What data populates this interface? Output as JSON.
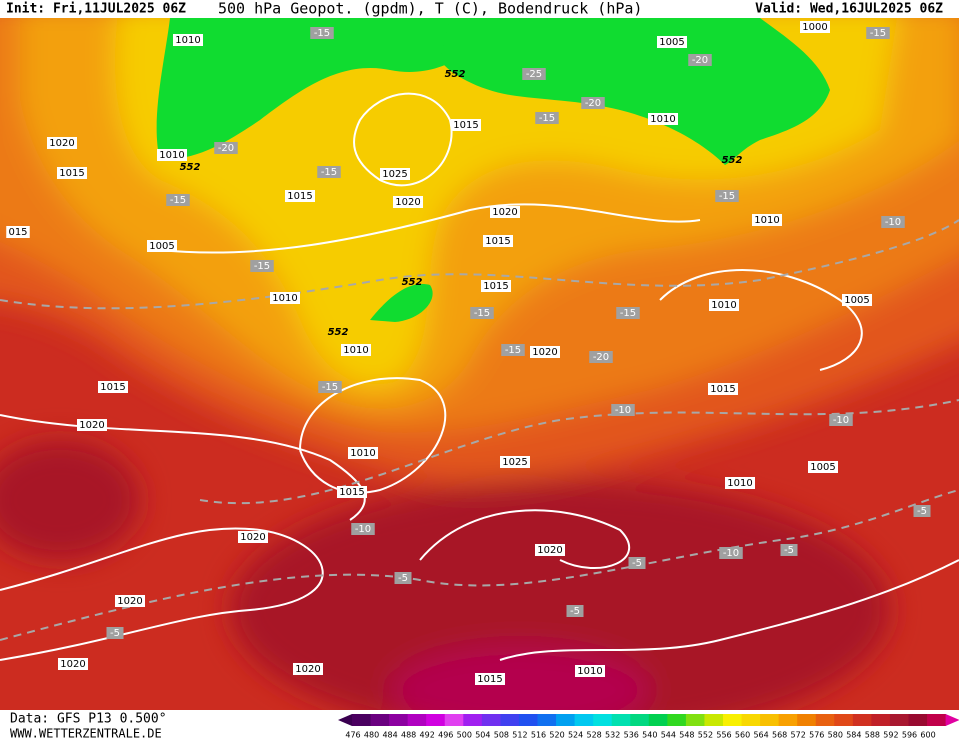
{
  "header": {
    "init": "Init: Fri,11JUL2025 06Z",
    "title": "500 hPa Geopot. (gpdm), T (C), Bodendruck (hPa)",
    "valid": "Valid: Wed,16JUL2025 06Z"
  },
  "footer": {
    "data": "Data: GFS P13 0.500°",
    "site": "WWW.WETTERZENTRALE.DE"
  },
  "colorbar": {
    "labels": [
      "476",
      "480",
      "484",
      "488",
      "492",
      "496",
      "500",
      "504",
      "508",
      "512",
      "516",
      "520",
      "524",
      "528",
      "532",
      "536",
      "540",
      "544",
      "548",
      "552",
      "556",
      "560",
      "564",
      "568",
      "572",
      "576",
      "580",
      "584",
      "588",
      "592",
      "596",
      "600"
    ]
  },
  "isobar_labels": [
    "1010",
    "1020",
    "1015",
    "1010",
    "1005",
    "015",
    "1015",
    "1025",
    "1020",
    "1015",
    "1020",
    "1015",
    "1015",
    "1010",
    "1010",
    "1020",
    "1015",
    "1020",
    "1010",
    "1025",
    "1015",
    "1020",
    "1020",
    "1020",
    "1020",
    "1020",
    "1015",
    "1010",
    "1005",
    "1010",
    "1000",
    "1010",
    "1010",
    "1005",
    "1015",
    "1005",
    "1010"
  ],
  "temperature_labels": [
    "-15",
    "-20",
    "-15",
    "-15",
    "-15",
    "-25",
    "-20",
    "-20",
    "-15",
    "-15",
    "-10",
    "-15",
    "-15",
    "-15",
    "-20",
    "-15",
    "-10",
    "-10",
    "-10",
    "-10",
    "-5",
    "-5",
    "-5",
    "-5",
    "-5",
    "-5",
    "-15"
  ],
  "height_labels": [
    "552",
    "552",
    "552",
    "552",
    "552"
  ]
}
